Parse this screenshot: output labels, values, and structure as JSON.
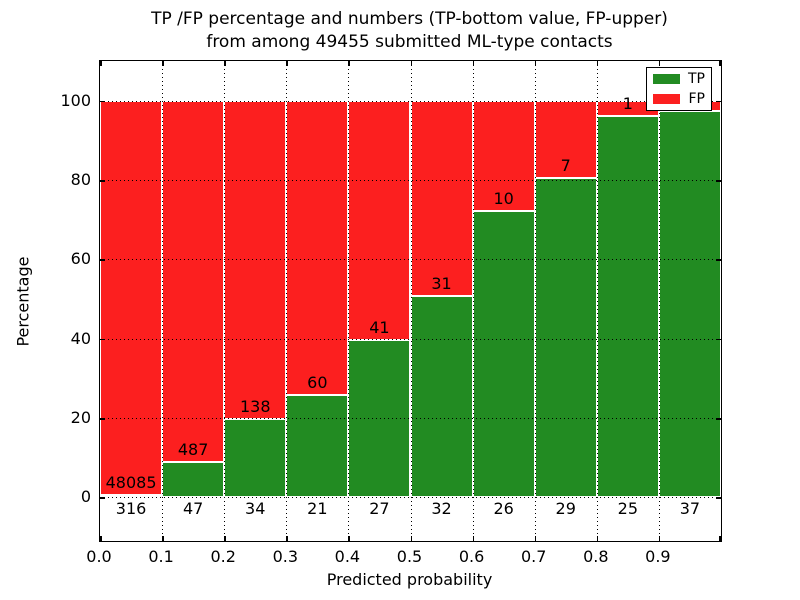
{
  "chart_data": {
    "type": "bar",
    "stacked": true,
    "orientation": "vertical",
    "title_line1": "TP /FP percentage and numbers (TP-bottom value, FP-upper)",
    "title_line2": "from among 49455 submitted ML-type contacts",
    "xlabel": "Predicted probability",
    "ylabel": "Percentage",
    "x_tick_labels": [
      "0.0",
      "0.1",
      "0.2",
      "0.3",
      "0.4",
      "0.5",
      "0.6",
      "0.7",
      "0.8",
      "0.9"
    ],
    "y_tick_values": [
      0,
      20,
      40,
      60,
      80,
      100
    ],
    "xlim": [
      0.0,
      1.0
    ],
    "ylim": [
      -11,
      110
    ],
    "bin_width": 0.1,
    "grid": true,
    "total_contacts": 49455,
    "colors": {
      "tp": "#228b22",
      "fp": "#fc1f1f"
    },
    "legend": {
      "position": "upper-right",
      "entries": [
        {
          "label": "TP",
          "color": "#228b22"
        },
        {
          "label": "FP",
          "color": "#fc1f1f"
        }
      ]
    },
    "bars": [
      {
        "bin_start": 0.0,
        "tp_label": "316",
        "fp_label": "48085",
        "tp_pct": 0.65
      },
      {
        "bin_start": 0.1,
        "tp_label": "47",
        "fp_label": "487",
        "tp_pct": 8.8
      },
      {
        "bin_start": 0.2,
        "tp_label": "34",
        "fp_label": "138",
        "tp_pct": 19.8
      },
      {
        "bin_start": 0.3,
        "tp_label": "21",
        "fp_label": "60",
        "tp_pct": 25.9
      },
      {
        "bin_start": 0.4,
        "tp_label": "27",
        "fp_label": "41",
        "tp_pct": 39.7
      },
      {
        "bin_start": 0.5,
        "tp_label": "32",
        "fp_label": "31",
        "tp_pct": 50.8
      },
      {
        "bin_start": 0.6,
        "tp_label": "26",
        "fp_label": "10",
        "tp_pct": 72.2
      },
      {
        "bin_start": 0.7,
        "tp_label": "29",
        "fp_label": "7",
        "tp_pct": 80.6
      },
      {
        "bin_start": 0.8,
        "tp_label": "25",
        "fp_label": "1",
        "tp_pct": 96.2
      },
      {
        "bin_start": 0.9,
        "tp_label": "37",
        "fp_label": "",
        "tp_pct": 97.4
      }
    ]
  }
}
